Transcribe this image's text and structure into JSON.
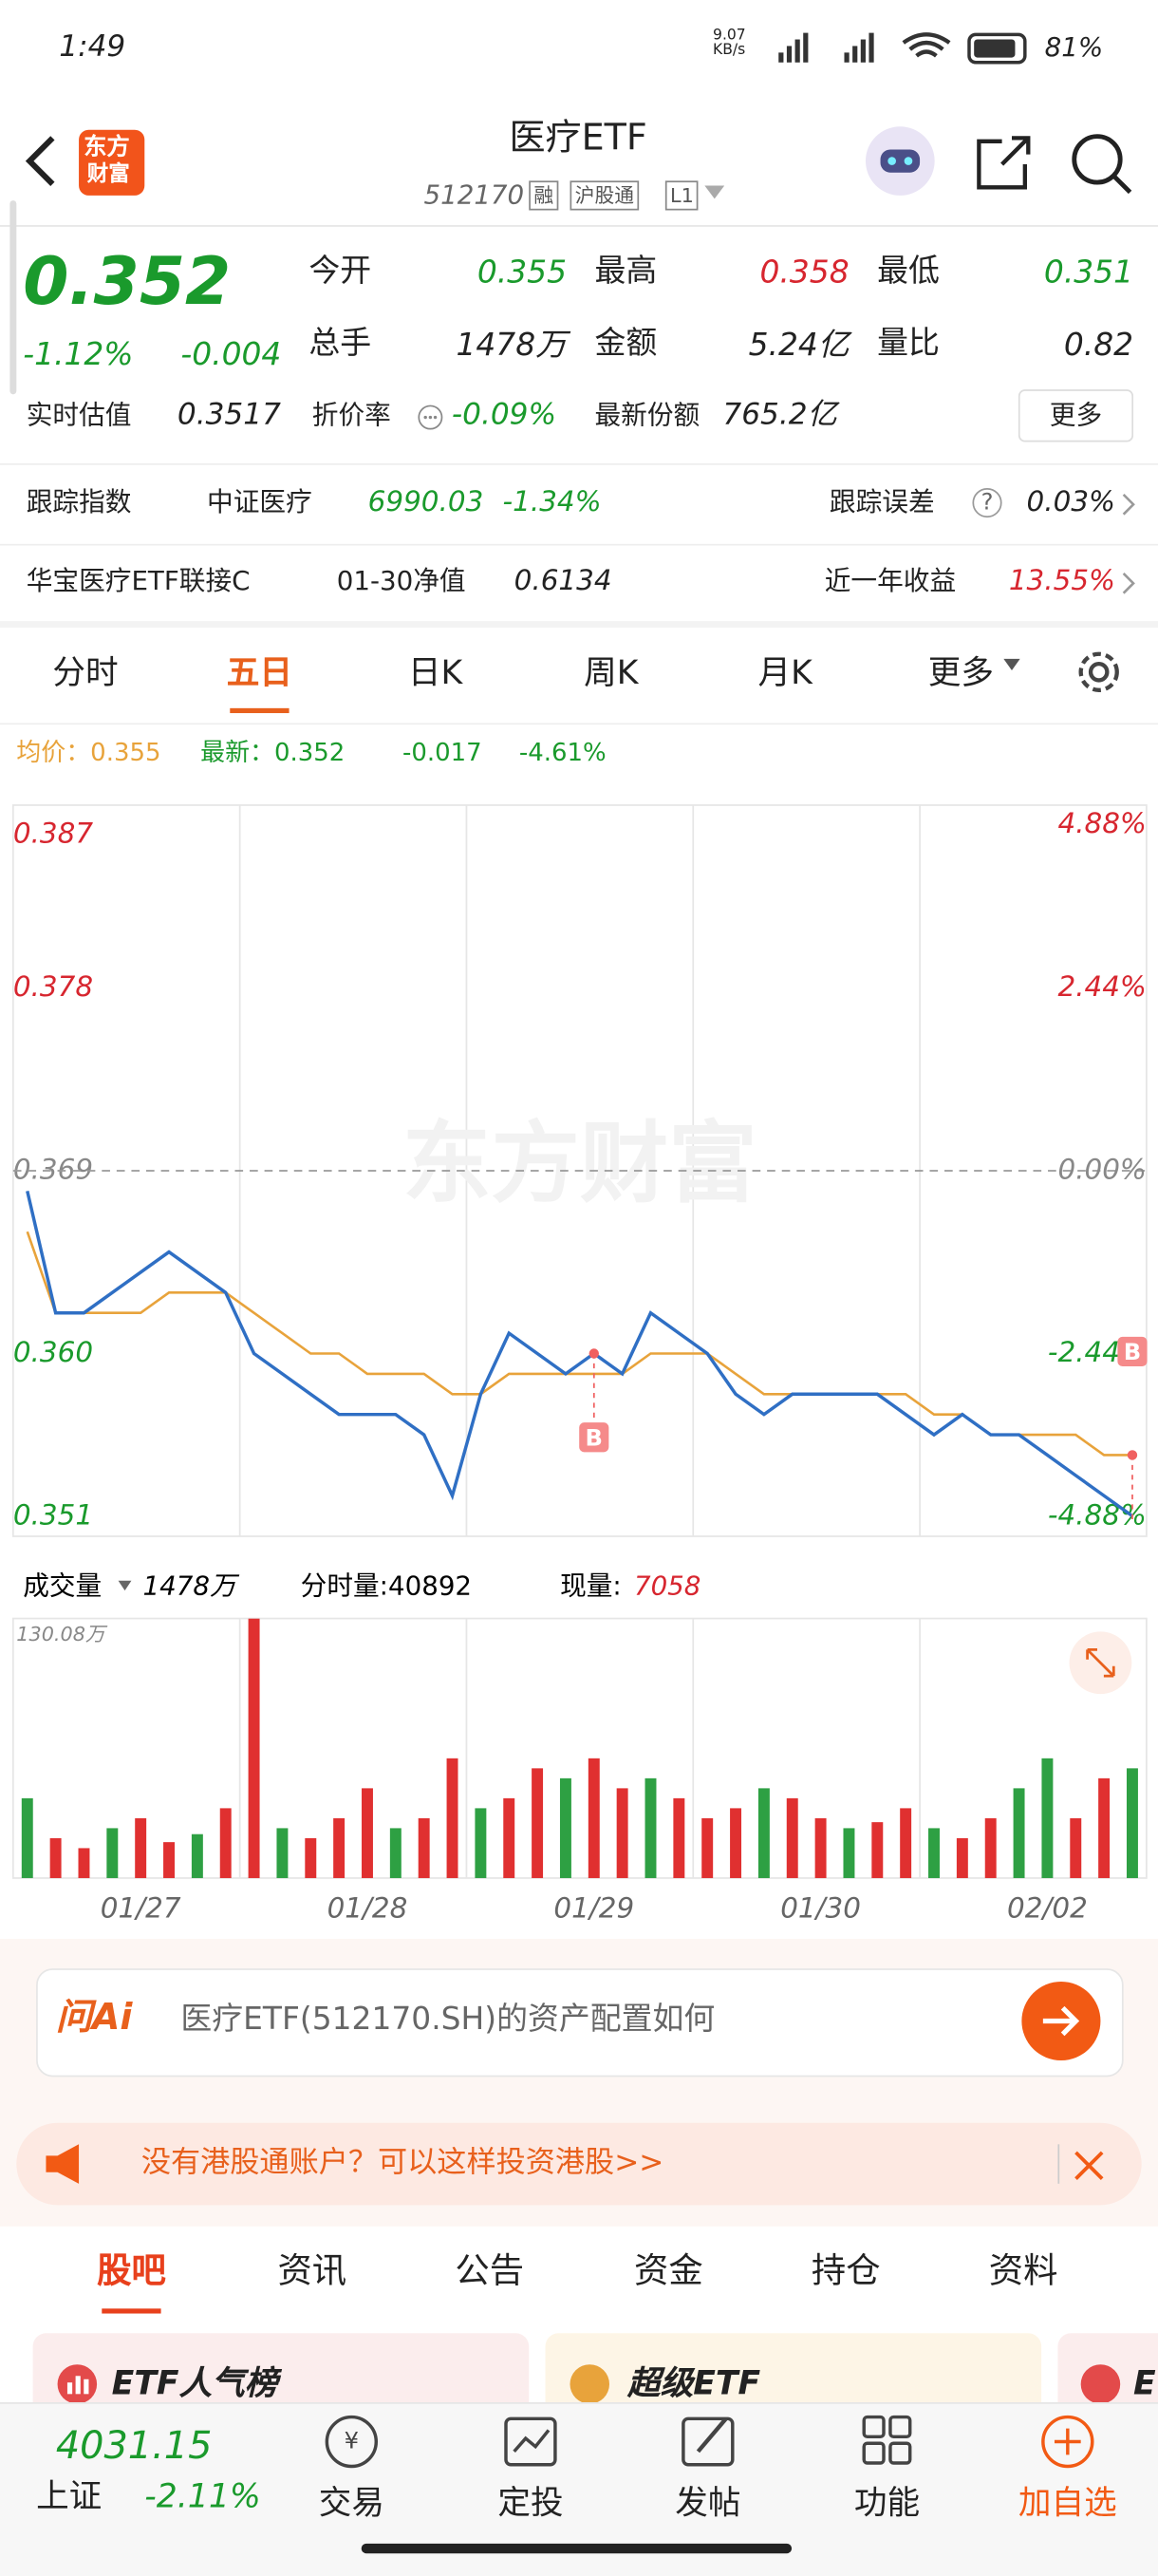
{
  "status": {
    "time": "1:49",
    "speed": "9.07 KB/s",
    "battery": "81%"
  },
  "header": {
    "logo_top": "东方",
    "logo_bottom": "财富",
    "title": "医疗ETF",
    "code": "512170",
    "badges": [
      "融",
      "沪股通",
      "L1"
    ]
  },
  "quote": {
    "price": "0.352",
    "change_pct": "-1.12%",
    "change": "-0.004",
    "fields": [
      {
        "label": "今开",
        "value": "0.355"
      },
      {
        "label": "最高",
        "value": "0.358"
      },
      {
        "label": "最低",
        "value": "0.351"
      },
      {
        "label": "总手",
        "value": "1478万"
      },
      {
        "label": "金额",
        "value": "5.24亿"
      },
      {
        "label": "量比",
        "value": "0.82"
      }
    ],
    "estimate_label": "实时估值",
    "estimate": "0.3517",
    "discount_label": "折价率",
    "discount": "-0.09%",
    "shares_label": "最新份额",
    "shares": "765.2亿",
    "more": "更多"
  },
  "tracking": {
    "label": "跟踪指数",
    "index": "中证医疗",
    "value": "6990.03",
    "pct": "-1.34%",
    "error_label": "跟踪误差",
    "error": "0.03%"
  },
  "linked": {
    "name": "华宝医疗ETF联接C",
    "nav_label": "01-30净值",
    "nav": "0.6134",
    "return_label": "近一年收益",
    "return": "13.55%"
  },
  "tabs": [
    "分时",
    "五日",
    "日K",
    "周K",
    "月K",
    "更多"
  ],
  "chart_info": {
    "avg": "均价：0.355",
    "latest": "最新：0.352",
    "change": "-0.017",
    "pct": "-4.61%"
  },
  "watermark": "东方财富",
  "volume_info": {
    "label": "成交量",
    "total": "1478万",
    "tick_volume": "分时量:40892",
    "now_label": "现量:",
    "now": "7058"
  },
  "chart_data": [
    {
      "type": "line",
      "ylim": [
        0.351,
        0.387
      ],
      "yticks": [
        0.387,
        0.378,
        0.369,
        {
          "value": 0.36,
          "label": "0.360"
        },
        0.351
      ],
      "y2lim": [
        -4.88,
        4.88
      ],
      "y2ticks": [
        {
          "value": 4.88,
          "label": "4.88%"
        },
        {
          "value": 2.44,
          "label": "2.44%"
        },
        {
          "value": 0,
          "label": "0.00%"
        },
        {
          "value": -2.44,
          "label": "-2.44%"
        },
        {
          "value": -4.88,
          "label": "-4.88%"
        }
      ],
      "series": [
        {
          "color": "#2f6fc4",
          "values": [
            0.368,
            0.362,
            0.362,
            0.363,
            0.364,
            0.365,
            0.364,
            0.363,
            0.36,
            0.359,
            0.358,
            0.357,
            0.357,
            0.357,
            0.356,
            0.353,
            0.358,
            0.361,
            0.36,
            0.359,
            0.36,
            0.359,
            0.362,
            0.361,
            0.36,
            0.358,
            0.357,
            0.358,
            0.358,
            0.358,
            0.358,
            0.357,
            0.356,
            0.357,
            0.356,
            0.356,
            0.355,
            0.354,
            0.353,
            0.352
          ]
        },
        {
          "color": "#e8a33b",
          "values": [
            0.366,
            0.362,
            0.362,
            0.362,
            0.362,
            0.363,
            0.363,
            0.363,
            0.362,
            0.361,
            0.36,
            0.36,
            0.359,
            0.359,
            0.359,
            0.358,
            0.358,
            0.359,
            0.359,
            0.359,
            0.359,
            0.359,
            0.36,
            0.36,
            0.36,
            0.359,
            0.358,
            0.358,
            0.358,
            0.358,
            0.358,
            0.358,
            0.357,
            0.357,
            0.356,
            0.356,
            0.356,
            0.356,
            0.355,
            0.355
          ]
        }
      ],
      "markers": [
        {
          "label": "B",
          "index": 20,
          "value": 0.36
        },
        {
          "label": "B",
          "index": 39,
          "value": 0.355
        }
      ]
    },
    {
      "type": "bar",
      "categories": [
        null,
        null,
        null,
        null,
        "01/27",
        null,
        null,
        null,
        null,
        null,
        null,
        null,
        "01/28",
        null,
        null,
        null,
        null,
        null,
        null,
        null,
        "01/29",
        null,
        null,
        null,
        null,
        null,
        null,
        null,
        "01/30",
        null,
        null,
        null,
        null,
        null,
        null,
        null,
        "02/02",
        null,
        null,
        null
      ],
      "values": [
        40,
        20,
        15,
        25,
        30,
        18,
        22,
        35,
        130,
        25,
        20,
        30,
        45,
        25,
        30,
        60,
        35,
        40,
        55,
        50,
        60,
        45,
        50,
        40,
        30,
        35,
        45,
        40,
        30,
        25,
        28,
        35,
        25,
        20,
        30,
        45,
        60,
        30,
        50,
        55
      ],
      "colors": [
        "#2ea043",
        "#e03030",
        "#e03030",
        "#2ea043",
        "#e03030",
        "#e03030",
        "#2ea043",
        "#e03030",
        "#e03030",
        "#2ea043",
        "#e03030",
        "#e03030",
        "#e03030",
        "#2ea043",
        "#e03030",
        "#e03030",
        "#2ea043",
        "#e03030",
        "#e03030",
        "#2ea043",
        "#e03030",
        "#e03030",
        "#2ea043",
        "#e03030",
        "#e03030",
        "#e03030",
        "#2ea043",
        "#e03030",
        "#e03030",
        "#2ea043",
        "#e03030",
        "#e03030",
        "#2ea043",
        "#e03030",
        "#e03030",
        "#2ea043",
        "#2ea043",
        "#e03030",
        "#e03030",
        "#2ea043"
      ],
      "ylim": [
        0,
        130.08
      ],
      "yticks": [
        {
          "value": 130.08,
          "label": "130.08万"
        }
      ]
    }
  ],
  "ai": {
    "brand": "问Ai",
    "prompt": "医疗ETF(512170.SH)的资产配置如何"
  },
  "banner": "没有港股通账户？可以这样投资港股>>",
  "section_tabs": [
    "股吧",
    "资讯",
    "公告",
    "资金",
    "持仓",
    "资料"
  ],
  "cards": [
    "ETF人气榜",
    "超级ETF",
    "E"
  ],
  "bottom": {
    "index_value": "4031.15",
    "index_name": "上证",
    "index_pct": "-2.11%",
    "items": [
      "交易",
      "定投",
      "发帖",
      "功能",
      "加自选"
    ]
  }
}
